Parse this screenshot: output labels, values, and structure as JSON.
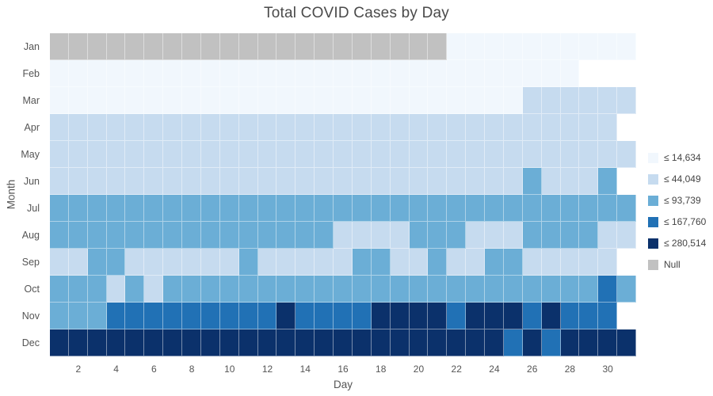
{
  "title": "Total COVID Cases by Day",
  "axes": {
    "x_label": "Day",
    "y_label": "Month"
  },
  "months": [
    "Jan",
    "Feb",
    "Mar",
    "Apr",
    "May",
    "Jun",
    "Jul",
    "Aug",
    "Sep",
    "Oct",
    "Nov",
    "Dec"
  ],
  "x_ticks": [
    2,
    4,
    6,
    8,
    10,
    12,
    14,
    16,
    18,
    20,
    22,
    24,
    26,
    28,
    30
  ],
  "legend": {
    "items": [
      {
        "label": "≤ 14,634",
        "color": "#f1f7fd"
      },
      {
        "label": "≤ 44,049",
        "color": "#c6dbef"
      },
      {
        "label": "≤ 93,739",
        "color": "#6baed6"
      },
      {
        "label": "≤ 167,760",
        "color": "#2171b5"
      },
      {
        "label": "≤ 280,514",
        "color": "#0b316b"
      },
      {
        "label": "Null",
        "color": "#c1c1c1"
      }
    ]
  },
  "chart_data": {
    "type": "heatmap",
    "title": "Total COVID Cases by Day",
    "xlabel": "Day",
    "ylabel": "Month",
    "x_range": [
      1,
      31
    ],
    "y_categories": [
      "Jan",
      "Feb",
      "Mar",
      "Apr",
      "May",
      "Jun",
      "Jul",
      "Aug",
      "Sep",
      "Oct",
      "Nov",
      "Dec"
    ],
    "bin_labels": [
      "≤ 14,634",
      "≤ 44,049",
      "≤ 93,739",
      "≤ 167,760",
      "≤ 280,514",
      "Null"
    ],
    "code_key": {
      "0": "no data (blank)",
      "1": "≤ 14,634",
      "2": "≤ 44,049",
      "3": "≤ 93,739",
      "4": "≤ 167,760",
      "5": "≤ 280,514",
      "6": "Null"
    },
    "legend_position": "right",
    "grid": [
      [
        6,
        6,
        6,
        6,
        6,
        6,
        6,
        6,
        6,
        6,
        6,
        6,
        6,
        6,
        6,
        6,
        6,
        6,
        6,
        6,
        6,
        1,
        1,
        1,
        1,
        1,
        1,
        1,
        1,
        1,
        1
      ],
      [
        1,
        1,
        1,
        1,
        1,
        1,
        1,
        1,
        1,
        1,
        1,
        1,
        1,
        1,
        1,
        1,
        1,
        1,
        1,
        1,
        1,
        1,
        1,
        1,
        1,
        1,
        1,
        1,
        0,
        0,
        0
      ],
      [
        1,
        1,
        1,
        1,
        1,
        1,
        1,
        1,
        1,
        1,
        1,
        1,
        1,
        1,
        1,
        1,
        1,
        1,
        1,
        1,
        1,
        1,
        1,
        1,
        1,
        2,
        2,
        2,
        2,
        2,
        2
      ],
      [
        2,
        2,
        2,
        2,
        2,
        2,
        2,
        2,
        2,
        2,
        2,
        2,
        2,
        2,
        2,
        2,
        2,
        2,
        2,
        2,
        2,
        2,
        2,
        2,
        2,
        2,
        2,
        2,
        2,
        2,
        0
      ],
      [
        2,
        2,
        2,
        2,
        2,
        2,
        2,
        2,
        2,
        2,
        2,
        2,
        2,
        2,
        2,
        2,
        2,
        2,
        2,
        2,
        2,
        2,
        2,
        2,
        2,
        2,
        2,
        2,
        2,
        2,
        2
      ],
      [
        2,
        2,
        2,
        2,
        2,
        2,
        2,
        2,
        2,
        2,
        2,
        2,
        2,
        2,
        2,
        2,
        2,
        2,
        2,
        2,
        2,
        2,
        2,
        2,
        2,
        3,
        2,
        2,
        2,
        3,
        0
      ],
      [
        3,
        3,
        3,
        3,
        3,
        3,
        3,
        3,
        3,
        3,
        3,
        3,
        3,
        3,
        3,
        3,
        3,
        3,
        3,
        3,
        3,
        3,
        3,
        3,
        3,
        3,
        3,
        3,
        3,
        3,
        3
      ],
      [
        3,
        3,
        3,
        3,
        3,
        3,
        3,
        3,
        3,
        3,
        3,
        3,
        3,
        3,
        3,
        2,
        2,
        2,
        2,
        3,
        3,
        3,
        2,
        2,
        2,
        3,
        3,
        3,
        3,
        2,
        2
      ],
      [
        2,
        2,
        3,
        3,
        2,
        2,
        2,
        2,
        2,
        2,
        3,
        2,
        2,
        2,
        2,
        2,
        3,
        3,
        2,
        2,
        3,
        2,
        2,
        3,
        3,
        2,
        2,
        2,
        2,
        2,
        0
      ],
      [
        3,
        3,
        3,
        2,
        3,
        2,
        3,
        3,
        3,
        3,
        3,
        3,
        3,
        3,
        3,
        3,
        3,
        3,
        3,
        3,
        3,
        3,
        3,
        3,
        3,
        3,
        3,
        3,
        3,
        4,
        3
      ],
      [
        3,
        3,
        3,
        4,
        4,
        4,
        4,
        4,
        4,
        4,
        4,
        4,
        5,
        4,
        4,
        4,
        4,
        5,
        5,
        5,
        5,
        4,
        5,
        5,
        5,
        4,
        5,
        4,
        4,
        4,
        0
      ],
      [
        5,
        5,
        5,
        5,
        5,
        5,
        5,
        5,
        5,
        5,
        5,
        5,
        5,
        5,
        5,
        5,
        5,
        5,
        5,
        5,
        5,
        5,
        5,
        5,
        4,
        5,
        4,
        5,
        5,
        5,
        5
      ]
    ]
  }
}
